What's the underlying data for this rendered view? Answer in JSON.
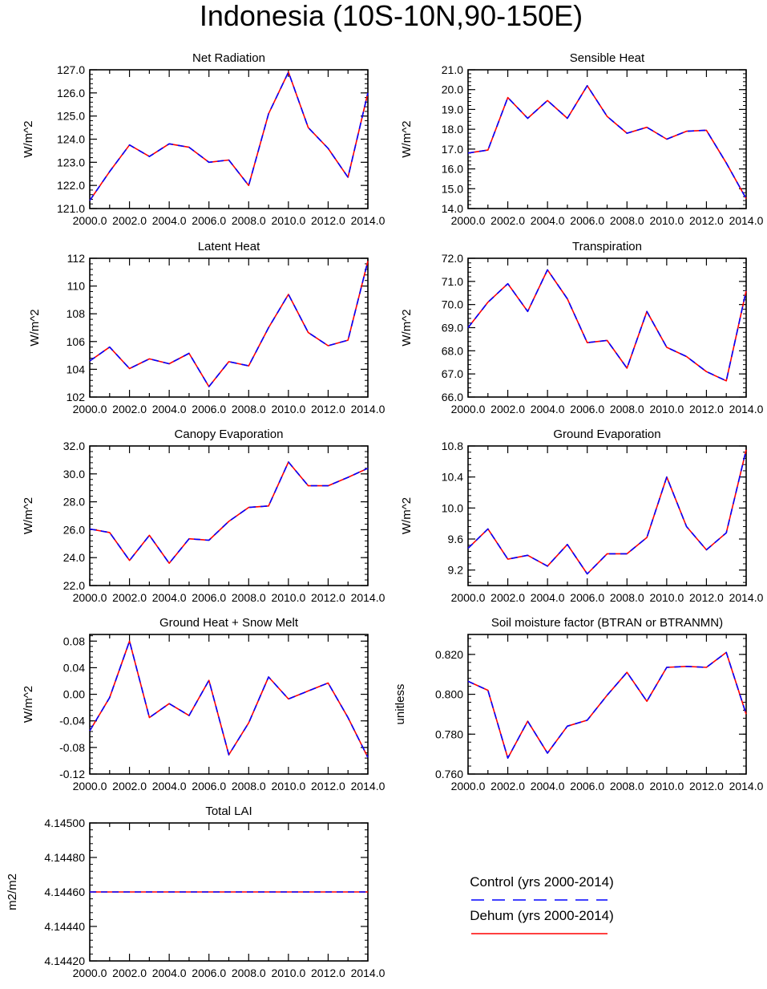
{
  "figure": {
    "title": "Indonesia (10S-10N,90-150E)"
  },
  "legend": {
    "entries": [
      {
        "label": "Control (yrs 2000-2014)",
        "color": "#0000ff",
        "style": "dashed"
      },
      {
        "label": "Dehum (yrs 2000-2014)",
        "color": "#ff0000",
        "style": "solid"
      }
    ]
  },
  "colors": {
    "control": "#0000ff",
    "dehum": "#ff0000",
    "axis": "#000000"
  },
  "chart_data": [
    {
      "type": "line",
      "title": "Net Radiation",
      "ylabel": "W/m^2",
      "xlim": [
        2000,
        2014
      ],
      "ylim": [
        121,
        127
      ],
      "xticks": [
        "2000.0",
        "2002.0",
        "2004.0",
        "2006.0",
        "2008.0",
        "2010.0",
        "2012.0",
        "2014.0"
      ],
      "yticks": [
        "121.0",
        "122.0",
        "123.0",
        "124.0",
        "125.0",
        "126.0",
        "127.0"
      ],
      "x": [
        2000,
        2001,
        2002,
        2003,
        2004,
        2005,
        2006,
        2007,
        2008,
        2009,
        2010,
        2011,
        2012,
        2013,
        2014
      ],
      "series": [
        {
          "name": "Control (yrs 2000-2014)",
          "values": [
            121.35,
            122.6,
            123.75,
            123.25,
            123.8,
            123.65,
            123.0,
            123.1,
            122.0,
            125.1,
            126.9,
            124.5,
            123.6,
            122.35,
            126.0
          ]
        },
        {
          "name": "Dehum (yrs 2000-2014)",
          "values": [
            121.35,
            122.6,
            123.75,
            123.25,
            123.8,
            123.65,
            123.0,
            123.1,
            122.0,
            125.1,
            126.9,
            124.5,
            123.6,
            122.35,
            126.0
          ]
        }
      ]
    },
    {
      "type": "line",
      "title": "Sensible Heat",
      "ylabel": "W/m^2",
      "xlim": [
        2000,
        2014
      ],
      "ylim": [
        14,
        21
      ],
      "xticks": [
        "2000.0",
        "2002.0",
        "2004.0",
        "2006.0",
        "2008.0",
        "2010.0",
        "2012.0",
        "2014.0"
      ],
      "yticks": [
        "14.0",
        "15.0",
        "16.0",
        "17.0",
        "18.0",
        "19.0",
        "20.0",
        "21.0"
      ],
      "x": [
        2000,
        2001,
        2002,
        2003,
        2004,
        2005,
        2006,
        2007,
        2008,
        2009,
        2010,
        2011,
        2012,
        2013,
        2014
      ],
      "series": [
        {
          "name": "Control (yrs 2000-2014)",
          "values": [
            16.8,
            16.95,
            19.6,
            18.55,
            19.45,
            18.55,
            20.2,
            18.65,
            17.8,
            18.1,
            17.5,
            17.9,
            17.95,
            16.3,
            14.5
          ]
        },
        {
          "name": "Dehum (yrs 2000-2014)",
          "values": [
            16.8,
            16.95,
            19.6,
            18.55,
            19.45,
            18.55,
            20.2,
            18.65,
            17.8,
            18.1,
            17.5,
            17.9,
            17.95,
            16.3,
            14.5
          ]
        }
      ]
    },
    {
      "type": "line",
      "title": "Latent Heat",
      "ylabel": "W/m^2",
      "xlim": [
        2000,
        2014
      ],
      "ylim": [
        102,
        112
      ],
      "xticks": [
        "2000.0",
        "2002.0",
        "2004.0",
        "2006.0",
        "2008.0",
        "2010.0",
        "2012.0",
        "2014.0"
      ],
      "yticks": [
        "102",
        "104",
        "106",
        "108",
        "110",
        "112"
      ],
      "x": [
        2000,
        2001,
        2002,
        2003,
        2004,
        2005,
        2006,
        2007,
        2008,
        2009,
        2010,
        2011,
        2012,
        2013,
        2014
      ],
      "series": [
        {
          "name": "Control (yrs 2000-2014)",
          "values": [
            104.6,
            105.6,
            104.05,
            104.75,
            104.4,
            105.15,
            102.75,
            104.55,
            104.25,
            107.0,
            109.4,
            106.65,
            105.7,
            106.1,
            111.8
          ]
        },
        {
          "name": "Dehum (yrs 2000-2014)",
          "values": [
            104.6,
            105.6,
            104.05,
            104.75,
            104.4,
            105.15,
            102.75,
            104.55,
            104.25,
            107.0,
            109.4,
            106.65,
            105.7,
            106.1,
            111.8
          ]
        }
      ]
    },
    {
      "type": "line",
      "title": "Transpiration",
      "ylabel": "W/m^2",
      "xlim": [
        2000,
        2014
      ],
      "ylim": [
        66,
        72
      ],
      "xticks": [
        "2000.0",
        "2002.0",
        "2004.0",
        "2006.0",
        "2008.0",
        "2010.0",
        "2012.0",
        "2014.0"
      ],
      "yticks": [
        "66.0",
        "67.0",
        "68.0",
        "69.0",
        "70.0",
        "71.0",
        "72.0"
      ],
      "x": [
        2000,
        2001,
        2002,
        2003,
        2004,
        2005,
        2006,
        2007,
        2008,
        2009,
        2010,
        2011,
        2012,
        2013,
        2014
      ],
      "series": [
        {
          "name": "Control (yrs 2000-2014)",
          "values": [
            69.0,
            70.1,
            70.9,
            69.7,
            71.5,
            70.25,
            68.35,
            68.45,
            67.25,
            69.7,
            68.15,
            67.75,
            67.1,
            66.7,
            70.6
          ]
        },
        {
          "name": "Dehum (yrs 2000-2014)",
          "values": [
            69.0,
            70.1,
            70.9,
            69.7,
            71.5,
            70.25,
            68.35,
            68.45,
            67.25,
            69.7,
            68.15,
            67.75,
            67.1,
            66.7,
            70.6
          ]
        }
      ]
    },
    {
      "type": "line",
      "title": "Canopy Evaporation",
      "ylabel": "W/m^2",
      "xlim": [
        2000,
        2014
      ],
      "ylim": [
        22,
        32
      ],
      "xticks": [
        "2000.0",
        "2002.0",
        "2004.0",
        "2006.0",
        "2008.0",
        "2010.0",
        "2012.0",
        "2014.0"
      ],
      "yticks": [
        "22.0",
        "24.0",
        "26.0",
        "28.0",
        "30.0",
        "32.0"
      ],
      "x": [
        2000,
        2001,
        2002,
        2003,
        2004,
        2005,
        2006,
        2007,
        2008,
        2009,
        2010,
        2011,
        2012,
        2013,
        2014
      ],
      "series": [
        {
          "name": "Control (yrs 2000-2014)",
          "values": [
            26.05,
            25.8,
            23.8,
            25.6,
            23.6,
            25.35,
            25.25,
            26.6,
            27.6,
            27.7,
            30.85,
            29.15,
            29.15,
            29.75,
            30.4
          ]
        },
        {
          "name": "Dehum (yrs 2000-2014)",
          "values": [
            26.05,
            25.8,
            23.8,
            25.6,
            23.6,
            25.35,
            25.25,
            26.6,
            27.6,
            27.7,
            30.85,
            29.15,
            29.15,
            29.75,
            30.4
          ]
        }
      ]
    },
    {
      "type": "line",
      "title": "Ground Evaporation",
      "ylabel": "W/m^2",
      "xlim": [
        2000,
        2014
      ],
      "ylim": [
        9.0,
        10.8
      ],
      "xticks": [
        "2000.0",
        "2002.0",
        "2004.0",
        "2006.0",
        "2008.0",
        "2010.0",
        "2012.0",
        "2014.0"
      ],
      "yticks": [
        "9.2",
        "9.6",
        "10.0",
        "10.4",
        "10.8"
      ],
      "ytick_values": [
        9.2,
        9.6,
        10.0,
        10.4,
        10.8
      ],
      "x": [
        2000,
        2001,
        2002,
        2003,
        2004,
        2005,
        2006,
        2007,
        2008,
        2009,
        2010,
        2011,
        2012,
        2013,
        2014
      ],
      "series": [
        {
          "name": "Control (yrs 2000-2014)",
          "values": [
            9.48,
            9.73,
            9.34,
            9.39,
            9.25,
            9.53,
            9.15,
            9.41,
            9.41,
            9.62,
            10.4,
            9.76,
            9.46,
            9.68,
            10.75
          ]
        },
        {
          "name": "Dehum (yrs 2000-2014)",
          "values": [
            9.48,
            9.73,
            9.34,
            9.39,
            9.25,
            9.53,
            9.15,
            9.41,
            9.41,
            9.62,
            10.4,
            9.76,
            9.46,
            9.68,
            10.75
          ]
        }
      ]
    },
    {
      "type": "line",
      "title": "Ground Heat + Snow Melt",
      "ylabel": "W/m^2",
      "xlim": [
        2000,
        2014
      ],
      "ylim": [
        -0.12,
        0.09
      ],
      "xticks": [
        "2000.0",
        "2002.0",
        "2004.0",
        "2006.0",
        "2008.0",
        "2010.0",
        "2012.0",
        "2014.0"
      ],
      "yticks": [
        "-0.12",
        "-0.08",
        "-0.04",
        "0.00",
        "0.04",
        "0.08"
      ],
      "ytick_values": [
        -0.12,
        -0.08,
        -0.04,
        0.0,
        0.04,
        0.08
      ],
      "x": [
        2000,
        2001,
        2002,
        2003,
        2004,
        2005,
        2006,
        2007,
        2008,
        2009,
        2010,
        2011,
        2012,
        2013,
        2014
      ],
      "series": [
        {
          "name": "Control (yrs 2000-2014)",
          "values": [
            -0.055,
            -0.005,
            0.08,
            -0.035,
            -0.014,
            -0.032,
            0.021,
            -0.091,
            -0.043,
            0.026,
            -0.007,
            0.005,
            0.017,
            -0.035,
            -0.095
          ]
        },
        {
          "name": "Dehum (yrs 2000-2014)",
          "values": [
            -0.055,
            -0.005,
            0.08,
            -0.035,
            -0.014,
            -0.032,
            0.021,
            -0.091,
            -0.043,
            0.026,
            -0.007,
            0.005,
            0.017,
            -0.035,
            -0.095
          ]
        }
      ]
    },
    {
      "type": "line",
      "title": "Soil moisture factor (BTRAN or BTRANMN)",
      "ylabel": "unitless",
      "xlim": [
        2000,
        2014
      ],
      "ylim": [
        0.76,
        0.83
      ],
      "xticks": [
        "2000.0",
        "2002.0",
        "2004.0",
        "2006.0",
        "2008.0",
        "2010.0",
        "2012.0",
        "2014.0"
      ],
      "yticks": [
        "0.760",
        "0.780",
        "0.800",
        "0.820"
      ],
      "ytick_values": [
        0.76,
        0.78,
        0.8,
        0.82
      ],
      "x": [
        2000,
        2001,
        2002,
        2003,
        2004,
        2005,
        2006,
        2007,
        2008,
        2009,
        2010,
        2011,
        2012,
        2013,
        2014
      ],
      "series": [
        {
          "name": "Control (yrs 2000-2014)",
          "values": [
            0.8065,
            0.802,
            0.768,
            0.7865,
            0.7705,
            0.784,
            0.787,
            0.7995,
            0.811,
            0.7965,
            0.8135,
            0.814,
            0.8135,
            0.821,
            0.79
          ]
        },
        {
          "name": "Dehum (yrs 2000-2014)",
          "values": [
            0.8065,
            0.802,
            0.768,
            0.7865,
            0.7705,
            0.784,
            0.787,
            0.7995,
            0.811,
            0.7965,
            0.8135,
            0.814,
            0.8135,
            0.821,
            0.79
          ]
        }
      ]
    },
    {
      "type": "line",
      "title": "Total LAI",
      "ylabel": "m2/m2",
      "xlim": [
        2000,
        2014
      ],
      "ylim": [
        4.1442,
        4.145
      ],
      "xticks": [
        "2000.0",
        "2002.0",
        "2004.0",
        "2006.0",
        "2008.0",
        "2010.0",
        "2012.0",
        "2014.0"
      ],
      "yticks": [
        "4.14420",
        "4.14440",
        "4.14460",
        "4.14480",
        "4.14500"
      ],
      "x": [
        2000,
        2001,
        2002,
        2003,
        2004,
        2005,
        2006,
        2007,
        2008,
        2009,
        2010,
        2011,
        2012,
        2013,
        2014
      ],
      "series": [
        {
          "name": "Control (yrs 2000-2014)",
          "values": [
            4.1446,
            4.1446,
            4.1446,
            4.1446,
            4.1446,
            4.1446,
            4.1446,
            4.1446,
            4.1446,
            4.1446,
            4.1446,
            4.1446,
            4.1446,
            4.1446,
            4.1446
          ]
        },
        {
          "name": "Dehum (yrs 2000-2014)",
          "values": [
            4.1446,
            4.1446,
            4.1446,
            4.1446,
            4.1446,
            4.1446,
            4.1446,
            4.1446,
            4.1446,
            4.1446,
            4.1446,
            4.1446,
            4.1446,
            4.1446,
            4.1446
          ]
        }
      ]
    }
  ]
}
